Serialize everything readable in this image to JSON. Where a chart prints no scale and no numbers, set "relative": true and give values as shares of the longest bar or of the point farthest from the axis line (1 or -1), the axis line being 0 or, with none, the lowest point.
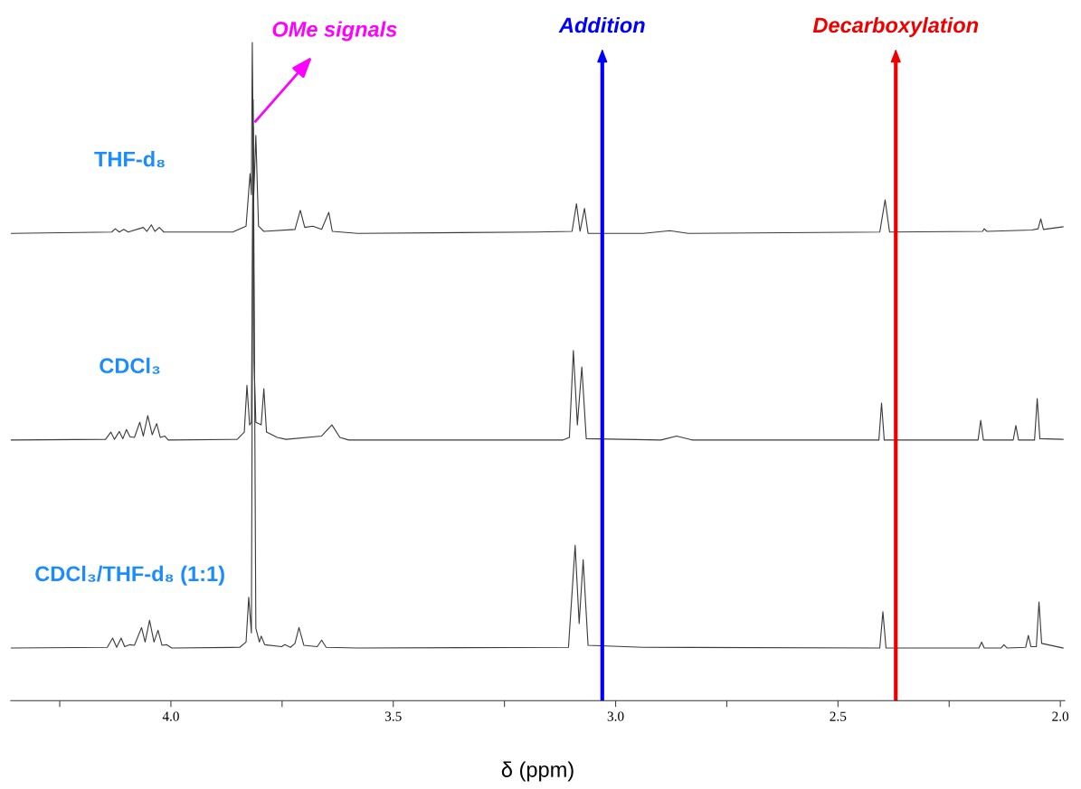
{
  "chart_data": {
    "type": "line",
    "xlabel": "δ (ppm)",
    "relative": true,
    "xlim": [
      4.36,
      1.99
    ],
    "xticks": [
      {
        "value": 4.25,
        "label": null
      },
      {
        "value": 4.0,
        "label": "4.0"
      },
      {
        "value": 3.75,
        "label": null
      },
      {
        "value": 3.5,
        "label": "3.5"
      },
      {
        "value": 3.25,
        "label": null
      },
      {
        "value": 3.0,
        "label": "3.0"
      },
      {
        "value": 2.75,
        "label": null
      },
      {
        "value": 2.5,
        "label": "2.5"
      },
      {
        "value": 2.25,
        "label": null
      },
      {
        "value": 2.0,
        "label": "2.0"
      }
    ],
    "grid": false,
    "legend": false,
    "marker": "none",
    "line_style": "solid",
    "series": [
      {
        "name": "THF-d₈",
        "color": "#3a3a3a",
        "x": [
          4.359,
          4.133,
          4.125,
          4.116,
          4.106,
          4.096,
          4.062,
          4.054,
          4.044,
          4.036,
          4.026,
          4.016,
          3.861,
          3.831,
          3.822,
          3.819,
          3.817,
          3.814,
          3.809,
          3.803,
          3.791,
          3.721,
          3.709,
          3.699,
          3.681,
          3.661,
          3.645,
          3.637,
          3.58,
          3.179,
          3.098,
          3.088,
          3.08,
          3.07,
          3.062,
          2.938,
          2.878,
          2.837,
          2.406,
          2.394,
          2.384,
          2.175,
          2.171,
          2.165,
          2.064,
          2.05,
          2.044,
          2.038,
          1.994
        ],
        "values": [
          0.71,
          0.712,
          0.717,
          0.712,
          0.716,
          0.712,
          0.719,
          0.713,
          0.723,
          0.713,
          0.719,
          0.712,
          0.712,
          0.721,
          0.801,
          0.769,
          1.0,
          0.762,
          0.859,
          0.721,
          0.713,
          0.716,
          0.745,
          0.719,
          0.721,
          0.716,
          0.742,
          0.713,
          0.71,
          0.712,
          0.713,
          0.755,
          0.713,
          0.748,
          0.71,
          0.71,
          0.714,
          0.71,
          0.712,
          0.761,
          0.712,
          0.713,
          0.717,
          0.713,
          0.715,
          0.717,
          0.732,
          0.716,
          0.72
        ]
      },
      {
        "name": "CDCl₃",
        "color": "#3a3a3a",
        "x": [
          4.359,
          4.147,
          4.135,
          4.127,
          4.116,
          4.108,
          4.1,
          4.092,
          4.082,
          4.07,
          4.062,
          4.052,
          4.042,
          4.032,
          4.024,
          4.014,
          4.006,
          3.851,
          3.835,
          3.829,
          3.823,
          3.819,
          3.815,
          3.813,
          3.809,
          3.797,
          3.791,
          3.785,
          3.761,
          3.741,
          3.661,
          3.638,
          3.62,
          3.6,
          3.118,
          3.104,
          3.095,
          3.086,
          3.076,
          3.066,
          2.898,
          2.863,
          2.827,
          2.408,
          2.402,
          2.396,
          2.185,
          2.179,
          2.173,
          2.106,
          2.1,
          2.094,
          2.058,
          2.052,
          2.046,
          1.994
        ],
        "values": [
          0.396,
          0.397,
          0.408,
          0.397,
          0.409,
          0.398,
          0.412,
          0.401,
          0.4,
          0.423,
          0.402,
          0.433,
          0.404,
          0.421,
          0.4,
          0.402,
          0.396,
          0.397,
          0.408,
          0.479,
          0.419,
          0.423,
          0.872,
          0.515,
          0.423,
          0.419,
          0.474,
          0.408,
          0.4,
          0.397,
          0.402,
          0.419,
          0.4,
          0.396,
          0.396,
          0.4,
          0.532,
          0.419,
          0.507,
          0.398,
          0.396,
          0.402,
          0.396,
          0.396,
          0.452,
          0.396,
          0.396,
          0.426,
          0.396,
          0.396,
          0.418,
          0.396,
          0.396,
          0.459,
          0.398,
          0.397
        ]
      },
      {
        "name": "CDCl₃/THF-d₈ (1:1)",
        "color": "#3a3a3a",
        "x": [
          4.359,
          4.143,
          4.131,
          4.122,
          4.112,
          4.104,
          4.092,
          4.082,
          4.066,
          4.058,
          4.048,
          4.038,
          4.029,
          4.02,
          4.01,
          3.998,
          3.845,
          3.831,
          3.825,
          3.819,
          3.815,
          3.809,
          3.801,
          3.797,
          3.789,
          3.751,
          3.744,
          3.731,
          3.721,
          3.712,
          3.701,
          3.671,
          3.661,
          3.651,
          3.58,
          3.106,
          3.091,
          3.082,
          3.073,
          3.062,
          2.938,
          2.406,
          2.399,
          2.392,
          2.183,
          2.177,
          2.171,
          2.133,
          2.127,
          2.12,
          2.078,
          2.072,
          2.066,
          2.054,
          2.048,
          2.042,
          1.994
        ],
        "values": [
          0.08,
          0.081,
          0.095,
          0.081,
          0.095,
          0.082,
          0.085,
          0.084,
          0.111,
          0.089,
          0.122,
          0.089,
          0.107,
          0.084,
          0.085,
          0.08,
          0.081,
          0.089,
          0.157,
          0.103,
          0.913,
          0.11,
          0.089,
          0.098,
          0.085,
          0.082,
          0.085,
          0.081,
          0.087,
          0.111,
          0.084,
          0.082,
          0.092,
          0.081,
          0.08,
          0.081,
          0.236,
          0.117,
          0.214,
          0.084,
          0.081,
          0.08,
          0.135,
          0.08,
          0.08,
          0.089,
          0.08,
          0.08,
          0.085,
          0.08,
          0.081,
          0.099,
          0.082,
          0.082,
          0.15,
          0.087,
          0.08
        ]
      }
    ],
    "ref_lines": [
      {
        "axis": "x",
        "value": 3.03,
        "label": "Addition",
        "color": "#0000ff",
        "line_style": "solid"
      },
      {
        "axis": "x",
        "value": 2.37,
        "label": "Decarboxylation",
        "color": "#ee0000",
        "line_style": "solid"
      }
    ],
    "annotations": [
      {
        "text": "OMe signals",
        "x": 3.81,
        "y": 0.88
      }
    ]
  }
}
